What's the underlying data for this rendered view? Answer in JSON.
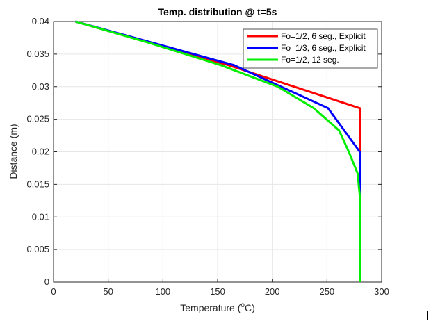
{
  "chart_data": {
    "type": "line",
    "title": "Temp. distribution @ t=5s",
    "xlabel": "Temperature (",
    "xlabel_sup": "o",
    "xlabel_end": "C)",
    "ylabel": "Distance (m)",
    "xlim": [
      0,
      300
    ],
    "ylim": [
      0,
      0.04
    ],
    "xticks": [
      "0",
      "50",
      "100",
      "150",
      "200",
      "250",
      "300"
    ],
    "yticks": [
      "0",
      "0.005",
      "0.01",
      "0.015",
      "0.02",
      "0.025",
      "0.03",
      "0.035",
      "0.04"
    ],
    "grid": true,
    "legend_position": "top-right",
    "series": [
      {
        "name": "Fo=1/2, 6 seg., Explicit",
        "color": "#ff0000",
        "points": [
          [
            20,
            0.04
          ],
          [
            160,
            0.0333
          ],
          [
            280,
            0.0267
          ],
          [
            280,
            0.02
          ],
          [
            280,
            0
          ]
        ]
      },
      {
        "name": "Fo=1/3, 6 seg., Explicit",
        "color": "#0000ff",
        "points": [
          [
            20,
            0.04
          ],
          [
            165,
            0.0333
          ],
          [
            251,
            0.0267
          ],
          [
            280,
            0.02
          ],
          [
            280,
            0.0133
          ],
          [
            280,
            0
          ]
        ]
      },
      {
        "name": "Fo=1/2, 12 seg.",
        "color": "#00ee00",
        "points": [
          [
            20,
            0.04
          ],
          [
            88,
            0.0367
          ],
          [
            153,
            0.0333
          ],
          [
            205,
            0.03
          ],
          [
            238,
            0.0267
          ],
          [
            261,
            0.0233
          ],
          [
            270,
            0.02
          ],
          [
            278,
            0.0167
          ],
          [
            280,
            0.0133
          ],
          [
            280,
            0.01
          ],
          [
            280,
            0
          ]
        ]
      }
    ]
  }
}
